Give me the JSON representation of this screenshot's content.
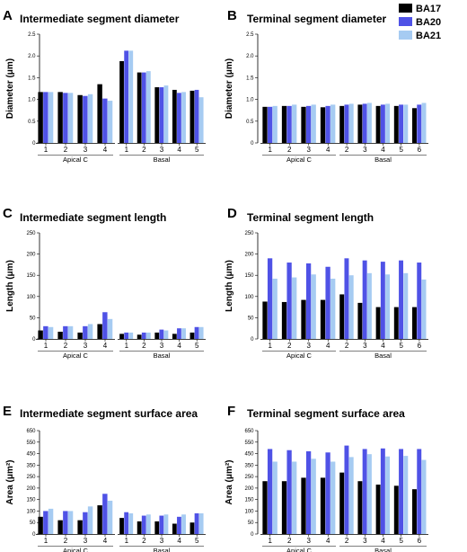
{
  "colors": {
    "BA17": "#000000",
    "BA20": "#4f52e6",
    "BA21": "#a6cbf2"
  },
  "legend": [
    "BA17",
    "BA20",
    "BA21"
  ],
  "chart_data": [
    {
      "letter": "A",
      "type": "bar",
      "title": "Intermediate segment diameter",
      "ylabel": "Diameter (μm)",
      "ylim": [
        0,
        2.5
      ],
      "yticks": [
        "0",
        "0.5",
        "1.0",
        "1.5",
        "2.0",
        "2.5"
      ],
      "groups": [
        {
          "name": "Apical C",
          "categories": [
            "1",
            "2",
            "3",
            "4"
          ],
          "series": [
            {
              "name": "BA17",
              "values": [
                1.17,
                1.17,
                1.1,
                1.35
              ]
            },
            {
              "name": "BA20",
              "values": [
                1.17,
                1.15,
                1.08,
                1.02
              ]
            },
            {
              "name": "BA21",
              "values": [
                1.17,
                1.15,
                1.12,
                0.97
              ]
            }
          ]
        },
        {
          "name": "Basal",
          "categories": [
            "1",
            "2",
            "3",
            "4",
            "5"
          ],
          "series": [
            {
              "name": "BA17",
              "values": [
                1.88,
                1.62,
                1.28,
                1.22,
                1.2
              ]
            },
            {
              "name": "BA20",
              "values": [
                2.12,
                1.62,
                1.28,
                1.15,
                1.22
              ]
            },
            {
              "name": "BA21",
              "values": [
                2.12,
                1.65,
                1.32,
                1.17,
                1.05
              ]
            }
          ]
        }
      ]
    },
    {
      "letter": "B",
      "type": "bar",
      "title": "Terminal segment diameter",
      "ylabel": "Diameter (μm)",
      "ylim": [
        0,
        2.5
      ],
      "yticks": [
        "0",
        "0.5",
        "1.0",
        "1.5",
        "2.0",
        "2.5"
      ],
      "groups": [
        {
          "name": "Apical C",
          "categories": [
            "1",
            "2",
            "3",
            "4"
          ],
          "series": [
            {
              "name": "BA17",
              "values": [
                0.83,
                0.85,
                0.83,
                0.82
              ]
            },
            {
              "name": "BA20",
              "values": [
                0.83,
                0.85,
                0.85,
                0.85
              ]
            },
            {
              "name": "BA21",
              "values": [
                0.85,
                0.88,
                0.88,
                0.88
              ]
            }
          ]
        },
        {
          "name": "Basal",
          "categories": [
            "2",
            "3",
            "4",
            "5",
            "6"
          ],
          "series": [
            {
              "name": "BA17",
              "values": [
                0.85,
                0.88,
                0.85,
                0.85,
                0.8
              ]
            },
            {
              "name": "BA20",
              "values": [
                0.88,
                0.9,
                0.88,
                0.88,
                0.88
              ]
            },
            {
              "name": "BA21",
              "values": [
                0.9,
                0.92,
                0.9,
                0.88,
                0.92
              ]
            }
          ]
        }
      ]
    },
    {
      "letter": "C",
      "type": "bar",
      "title": "Intermediate segment length",
      "ylabel": "Length (μm)",
      "ylim": [
        0,
        250
      ],
      "yticks": [
        "0",
        "50",
        "100",
        "150",
        "200",
        "250"
      ],
      "groups": [
        {
          "name": "Apical C",
          "categories": [
            "1",
            "2",
            "3",
            "4"
          ],
          "series": [
            {
              "name": "BA17",
              "values": [
                20,
                17,
                15,
                35
              ]
            },
            {
              "name": "BA20",
              "values": [
                30,
                30,
                30,
                63
              ]
            },
            {
              "name": "BA21",
              "values": [
                28,
                30,
                35,
                47
              ]
            }
          ]
        },
        {
          "name": "Basal",
          "categories": [
            "1",
            "2",
            "3",
            "4",
            "5"
          ],
          "series": [
            {
              "name": "BA17",
              "values": [
                12,
                10,
                15,
                12,
                15
              ]
            },
            {
              "name": "BA20",
              "values": [
                15,
                15,
                22,
                25,
                28
              ]
            },
            {
              "name": "BA21",
              "values": [
                15,
                15,
                20,
                25,
                28
              ]
            }
          ]
        }
      ]
    },
    {
      "letter": "D",
      "type": "bar",
      "title": "Terminal segment length",
      "ylabel": "Length (μm)",
      "ylim": [
        0,
        250
      ],
      "yticks": [
        "0",
        "50",
        "100",
        "150",
        "200",
        "250"
      ],
      "groups": [
        {
          "name": "Apical C",
          "categories": [
            "1",
            "2",
            "3",
            "4"
          ],
          "series": [
            {
              "name": "BA17",
              "values": [
                88,
                87,
                92,
                92
              ]
            },
            {
              "name": "BA20",
              "values": [
                190,
                180,
                178,
                170
              ]
            },
            {
              "name": "BA21",
              "values": [
                142,
                145,
                152,
                142
              ]
            }
          ]
        },
        {
          "name": "Basal",
          "categories": [
            "2",
            "3",
            "4",
            "5",
            "6"
          ],
          "series": [
            {
              "name": "BA17",
              "values": [
                105,
                85,
                75,
                75,
                75
              ]
            },
            {
              "name": "BA20",
              "values": [
                190,
                185,
                182,
                185,
                180
              ]
            },
            {
              "name": "BA21",
              "values": [
                150,
                155,
                152,
                155,
                140
              ]
            }
          ]
        }
      ]
    },
    {
      "letter": "E",
      "type": "bar",
      "title": "Intermediate segment surface area",
      "ylabel": "Area (μm²)",
      "ylim": [
        0,
        650
      ],
      "yticks": [
        "0",
        "50",
        "100",
        "150",
        "200",
        "250",
        "350",
        "450",
        "550",
        "650"
      ],
      "groups": [
        {
          "name": "Apical C",
          "categories": [
            "1",
            "2",
            "3",
            "4"
          ],
          "series": [
            {
              "name": "BA17",
              "values": [
                75,
                60,
                60,
                125
              ]
            },
            {
              "name": "BA20",
              "values": [
                100,
                100,
                95,
                175
              ]
            },
            {
              "name": "BA21",
              "values": [
                110,
                100,
                120,
                145
              ]
            }
          ]
        },
        {
          "name": "Basal",
          "categories": [
            "1",
            "2",
            "3",
            "4",
            "5"
          ],
          "series": [
            {
              "name": "BA17",
              "values": [
                70,
                55,
                55,
                45,
                50
              ]
            },
            {
              "name": "BA20",
              "values": [
                95,
                80,
                80,
                75,
                90
              ]
            },
            {
              "name": "BA21",
              "values": [
                90,
                85,
                85,
                85,
                90
              ]
            }
          ]
        }
      ]
    },
    {
      "letter": "F",
      "type": "bar",
      "title": "Terminal segment surface area",
      "ylabel": "Area (μm²)",
      "ylim": [
        0,
        650
      ],
      "yticks": [
        "0",
        "50",
        "100",
        "150",
        "200",
        "250",
        "350",
        "450",
        "550",
        "650"
      ],
      "groups": [
        {
          "name": "Apical C",
          "categories": [
            "1",
            "2",
            "3",
            "4"
          ],
          "series": [
            {
              "name": "BA17",
              "values": [
                230,
                230,
                245,
                245
              ]
            },
            {
              "name": "BA20",
              "values": [
                490,
                480,
                470,
                460
              ]
            },
            {
              "name": "BA21",
              "values": [
                380,
                380,
                405,
                380
              ]
            }
          ]
        },
        {
          "name": "Basal",
          "categories": [
            "2",
            "3",
            "4",
            "5",
            "6"
          ],
          "series": [
            {
              "name": "BA17",
              "values": [
                285,
                230,
                215,
                210,
                195
              ]
            },
            {
              "name": "BA20",
              "values": [
                520,
                490,
                495,
                490,
                490
              ]
            },
            {
              "name": "BA21",
              "values": [
                420,
                445,
                425,
                430,
                395
              ]
            }
          ]
        }
      ]
    }
  ]
}
